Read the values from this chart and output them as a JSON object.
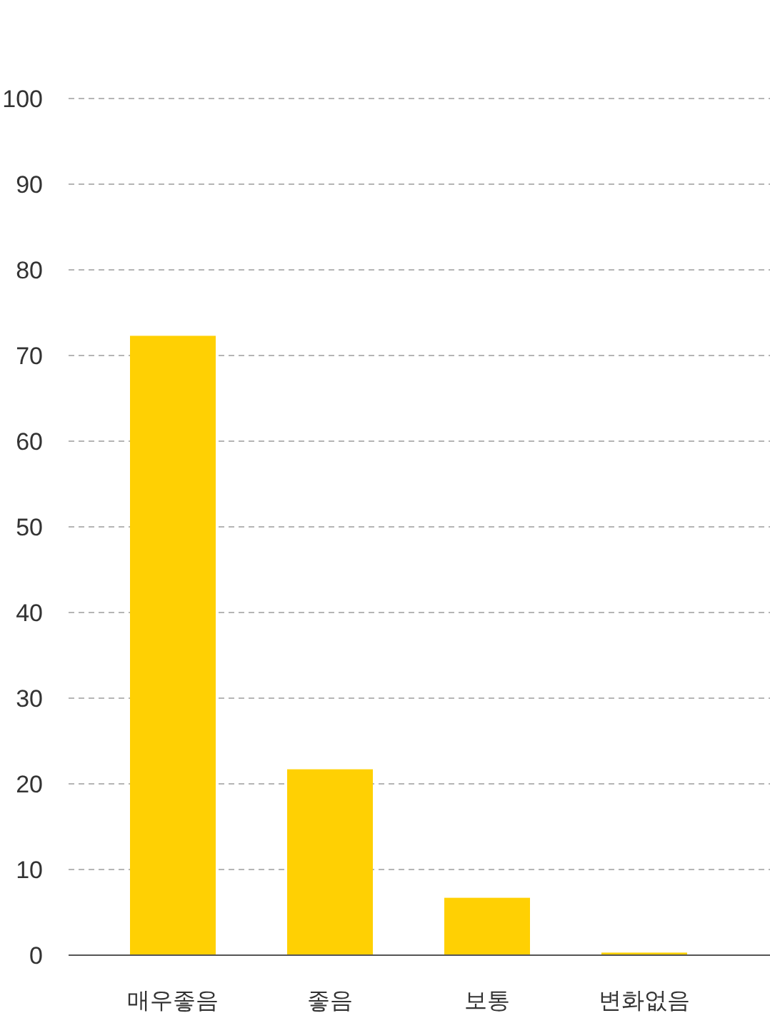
{
  "chart_data": {
    "type": "bar",
    "categories": [
      "매우좋음",
      "좋음",
      "보통",
      "변화없음"
    ],
    "values": [
      72.3,
      21.7,
      6.7,
      0.3
    ],
    "color": "#ffd003",
    "ylim": [
      0,
      100
    ],
    "yticks": [
      0,
      10,
      20,
      30,
      40,
      50,
      60,
      70,
      80,
      90,
      100
    ],
    "grid": "y"
  }
}
